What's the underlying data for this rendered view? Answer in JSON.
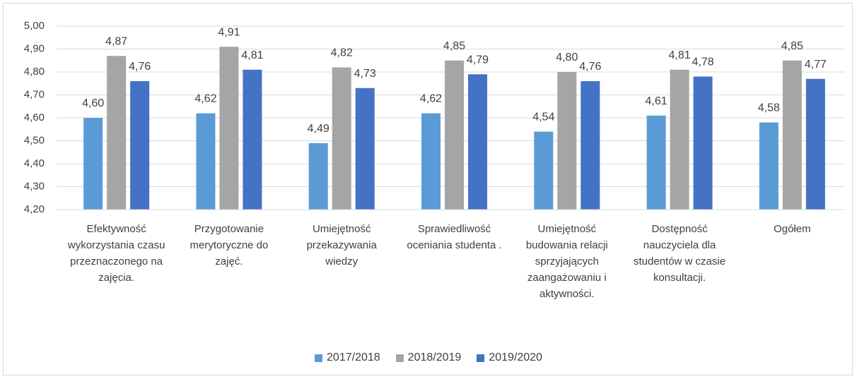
{
  "chart_data": {
    "type": "bar",
    "categories": [
      "Efektywność wykorzystania czasu przeznaczonego na zajęcia.",
      "Przygotowanie merytoryczne do zajęć.",
      "Umiejętność przekazywania wiedzy",
      "Sprawiedliwość oceniania studenta .",
      "Umiejętność budowania relacji sprzyjających zaangażowaniu i aktywności.",
      "Dostępność nauczyciela dla studentów w czasie konsultacji.",
      "Ogółem"
    ],
    "series": [
      {
        "name": "2017/2018",
        "color": "#5b9bd5",
        "values": [
          4.6,
          4.62,
          4.49,
          4.62,
          4.54,
          4.61,
          4.58
        ],
        "value_labels": [
          "4,60",
          "4,62",
          "4,49",
          "4,62",
          "4,54",
          "4,61",
          "4,58"
        ]
      },
      {
        "name": "2018/2019",
        "color": "#a5a5a5",
        "values": [
          4.87,
          4.91,
          4.82,
          4.85,
          4.8,
          4.81,
          4.85
        ],
        "value_labels": [
          "4,87",
          "4,91",
          "4,82",
          "4,85",
          "4,80",
          "4,81",
          "4,85"
        ]
      },
      {
        "name": "2019/2020",
        "color": "#4472c4",
        "values": [
          4.76,
          4.81,
          4.73,
          4.79,
          4.76,
          4.78,
          4.77
        ],
        "value_labels": [
          "4,76",
          "4,81",
          "4,73",
          "4,79",
          "4,76",
          "4,78",
          "4,77"
        ]
      }
    ],
    "ylim": [
      4.2,
      5.0
    ],
    "yticks": [
      {
        "value": 4.2,
        "label": "4,20"
      },
      {
        "value": 4.3,
        "label": "4,30"
      },
      {
        "value": 4.4,
        "label": "4,40"
      },
      {
        "value": 4.5,
        "label": "4,50"
      },
      {
        "value": 4.6,
        "label": "4,60"
      },
      {
        "value": 4.7,
        "label": "4,70"
      },
      {
        "value": 4.8,
        "label": "4,80"
      },
      {
        "value": 4.9,
        "label": "4,90"
      },
      {
        "value": 5.0,
        "label": "5,00"
      }
    ],
    "grid": true,
    "legend": "bottom"
  }
}
